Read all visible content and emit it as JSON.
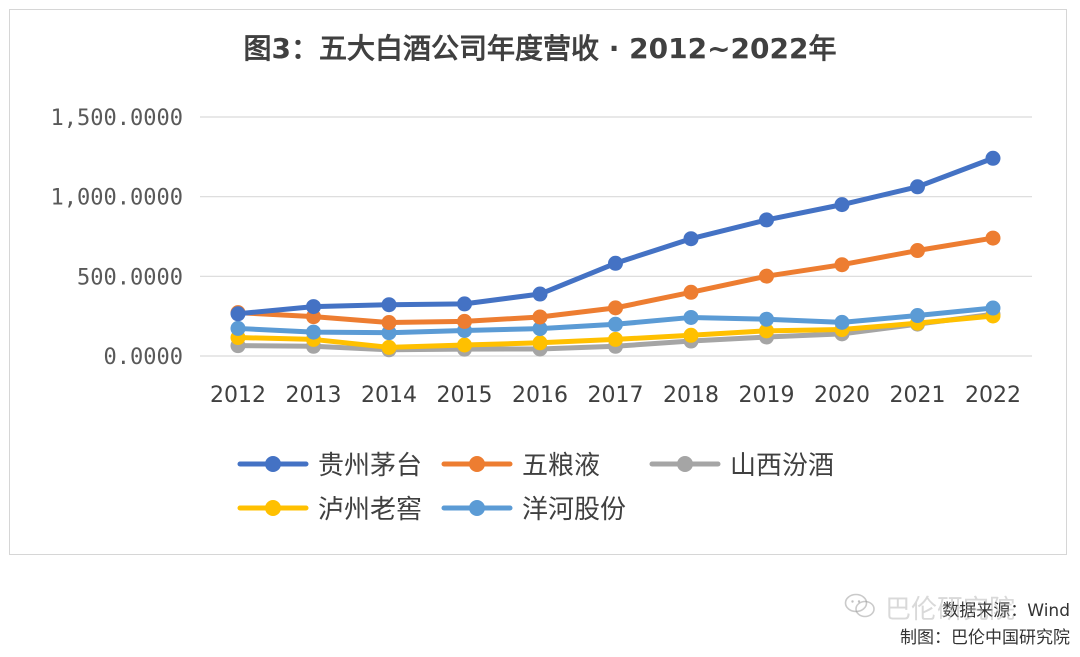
{
  "chart_data": {
    "type": "line",
    "title": "图3：五大白酒公司年度营收 · 2012~2022年",
    "categories": [
      "2012",
      "2013",
      "2014",
      "2015",
      "2016",
      "2017",
      "2018",
      "2019",
      "2020",
      "2021",
      "2022"
    ],
    "ylim": [
      0,
      1500
    ],
    "yticks": [
      0,
      500,
      1000,
      1500
    ],
    "ytick_labels": [
      "0.0000",
      "500.0000",
      "1,000.0000",
      "1,500.0000"
    ],
    "grid": true,
    "legend_position": "bottom",
    "series": [
      {
        "name": "贵州茅台",
        "color": "#4472C4",
        "values": [
          265,
          310,
          322,
          327,
          389,
          582,
          736,
          854,
          950,
          1062,
          1241
        ]
      },
      {
        "name": "五粮液",
        "color": "#ED7D31",
        "values": [
          272,
          247,
          210,
          217,
          245,
          302,
          400,
          501,
          573,
          662,
          740
        ]
      },
      {
        "name": "山西汾酒",
        "color": "#A5A5A5",
        "values": [
          65,
          61,
          39,
          43,
          44,
          61,
          94,
          119,
          139,
          200,
          262
        ]
      },
      {
        "name": "泸州老窖",
        "color": "#FFC000",
        "values": [
          116,
          104,
          54,
          69,
          83,
          104,
          130,
          158,
          166,
          206,
          251
        ]
      },
      {
        "name": "洋河股份",
        "color": "#5B9BD5",
        "values": [
          173,
          150,
          146,
          160,
          172,
          199,
          242,
          231,
          211,
          254,
          301
        ]
      }
    ]
  },
  "credits": {
    "source": "数据来源：Wind",
    "maker": "制图：巴伦中国研究院"
  },
  "watermark": {
    "text": "巴伦研究院",
    "icon": "wechat-icon"
  }
}
